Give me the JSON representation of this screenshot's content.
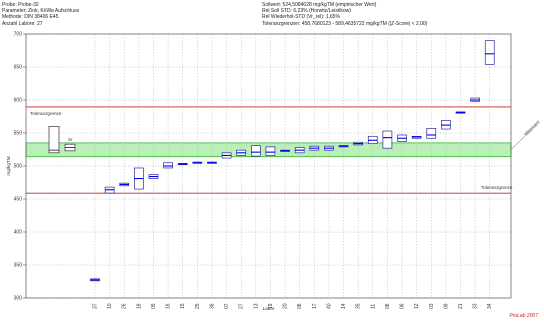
{
  "header_left": [
    "Probe: Probe-32",
    "Parameter: Zink, KöWa Aufschluss",
    "Methode: DIN 38406 E45",
    "Anzahl Labore: 27"
  ],
  "header_right": [
    "Sollwert: 524,5084028 mg/kgTM (empirischer Wert)",
    "Rel Soll STD: 6,23% (Horwitz/Leistikow)",
    "Rel Wiederhol-STD (Vr_rel): 1,65%",
    "Toleranzgrenzen: 458,7680123 - 589,4635722 mg/kgTM  (|Z-Score| < 2,00)"
  ],
  "watermark": "ProLab 2007",
  "colors": {
    "box": "#2a2aa0",
    "median": "#0000ff",
    "tolerance": "#cc2222",
    "band": "#b8f0b8",
    "band_edge": "#22aa22"
  },
  "chart_data": {
    "type": "boxplot",
    "ylabel": "mg/kgTM",
    "xlabel": "Labor",
    "ylim": [
      300,
      700
    ],
    "yticks": [
      300,
      350,
      400,
      450,
      500,
      550,
      600,
      650,
      700
    ],
    "grid": true,
    "reference": {
      "label": "Sr",
      "box": [
        520,
        560
      ],
      "median": 524,
      "small_box": [
        523,
        533
      ],
      "small_median": 528
    },
    "tolerance_upper": {
      "value": 589.46,
      "label": "Toleranzgrenze"
    },
    "tolerance_lower": {
      "value": 458.77,
      "label": "Toleranzgrenze"
    },
    "assigned_band": [
      514,
      535
    ],
    "band_label": "Mittelwert",
    "labs": [
      {
        "lab": "37",
        "low": 326,
        "high": 329,
        "median": 327.5
      },
      {
        "lab": "10",
        "low": 459,
        "high": 468,
        "median": 464
      },
      {
        "lab": "26",
        "low": 470,
        "high": 474,
        "median": 472
      },
      {
        "lab": "18",
        "low": 465,
        "high": 497,
        "median": 481
      },
      {
        "lab": "05",
        "low": 481,
        "high": 487,
        "median": 484
      },
      {
        "lab": "16",
        "low": 497,
        "high": 505,
        "median": 500
      },
      {
        "lab": "15",
        "low": 502,
        "high": 504,
        "median": 503
      },
      {
        "lab": "25",
        "low": 504,
        "high": 506,
        "median": 505
      },
      {
        "lab": "36",
        "low": 504,
        "high": 506,
        "median": 505
      },
      {
        "lab": "07",
        "low": 512,
        "high": 520,
        "median": 516
      },
      {
        "lab": "27",
        "low": 516,
        "high": 524,
        "median": 520
      },
      {
        "lab": "13",
        "low": 515,
        "high": 531,
        "median": 521
      },
      {
        "lab": "19",
        "low": 516,
        "high": 529,
        "median": 521
      },
      {
        "lab": "20",
        "low": 522,
        "high": 524,
        "median": 523
      },
      {
        "lab": "08",
        "low": 520,
        "high": 528,
        "median": 524
      },
      {
        "lab": "17",
        "low": 524,
        "high": 530,
        "median": 527
      },
      {
        "lab": "40",
        "low": 524,
        "high": 530,
        "median": 527
      },
      {
        "lab": "14",
        "low": 529,
        "high": 531,
        "median": 530
      },
      {
        "lab": "35",
        "low": 532,
        "high": 536,
        "median": 534
      },
      {
        "lab": "11",
        "low": 534,
        "high": 545,
        "median": 539
      },
      {
        "lab": "08",
        "low": 527,
        "high": 553,
        "median": 543
      },
      {
        "lab": "06",
        "low": 537,
        "high": 547,
        "median": 542
      },
      {
        "lab": "12",
        "low": 542,
        "high": 545,
        "median": 544
      },
      {
        "lab": "03",
        "low": 542,
        "high": 557,
        "median": 547
      },
      {
        "lab": "09",
        "low": 556,
        "high": 569,
        "median": 562
      },
      {
        "lab": "21",
        "low": 580,
        "high": 582,
        "median": 581
      },
      {
        "lab": "33",
        "low": 598,
        "high": 603,
        "median": 600
      },
      {
        "lab": "34",
        "low": 654,
        "high": 690,
        "median": 670
      }
    ]
  }
}
